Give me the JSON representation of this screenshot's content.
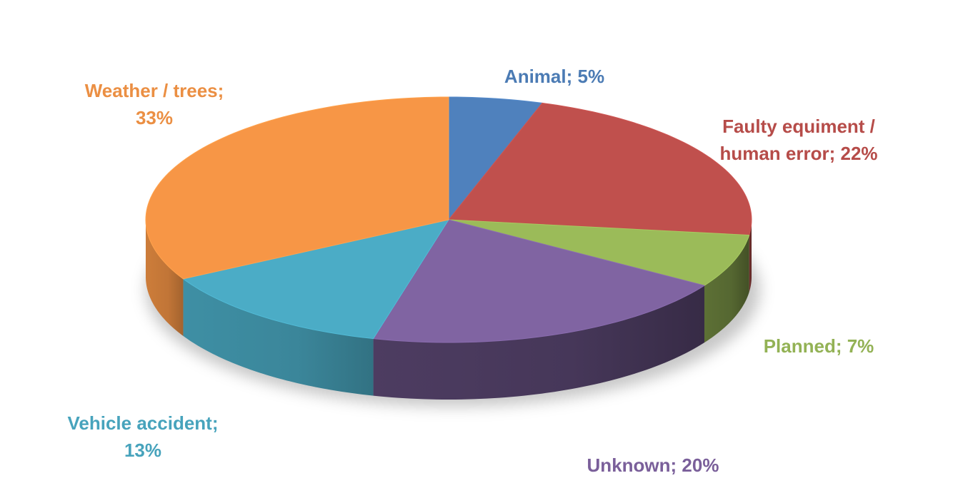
{
  "chart_data": {
    "type": "pie",
    "style": "3d",
    "title": "",
    "slices": [
      {
        "label": "Animal",
        "value": 5,
        "color": "#4F81BD",
        "label_lines": [
          "Animal; 5%"
        ]
      },
      {
        "label": "Faulty equiment / human error",
        "value": 22,
        "color": "#C0504D",
        "label_lines": [
          "Faulty equiment /",
          "human error; 22%"
        ]
      },
      {
        "label": "Planned",
        "value": 7,
        "color": "#9BBB59",
        "label_lines": [
          "Planned; 7%"
        ]
      },
      {
        "label": "Unknown",
        "value": 20,
        "color": "#8064A2",
        "label_lines": [
          "Unknown; 20%"
        ]
      },
      {
        "label": "Vehicle accident",
        "value": 13,
        "color": "#4BACC6",
        "label_lines": [
          "Vehicle accident;",
          "13%"
        ]
      },
      {
        "label": "Weather / trees",
        "value": 33,
        "color": "#F79646",
        "label_lines": [
          "Weather / trees;",
          "33%"
        ]
      }
    ],
    "legend": "none"
  }
}
